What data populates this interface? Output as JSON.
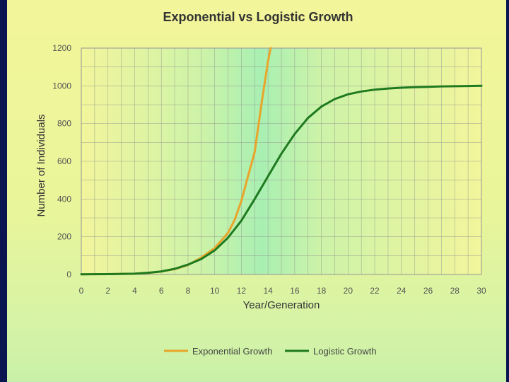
{
  "chart_data": {
    "type": "line",
    "title": "Exponential vs Logistic Growth",
    "xlabel": "Year/Generation",
    "ylabel": "Number of Individuals",
    "xlim": [
      0,
      30
    ],
    "ylim": [
      0,
      1200
    ],
    "x_ticks": [
      "0",
      "2",
      "4",
      "6",
      "8",
      "10",
      "12",
      "14",
      "16",
      "18",
      "20",
      "22",
      "24",
      "26",
      "28",
      "30"
    ],
    "y_ticks": [
      "0",
      "200",
      "400",
      "600",
      "800",
      "1000",
      "1200"
    ],
    "grid": true,
    "legend_position": "bottom",
    "series": [
      {
        "name": "Exponential Growth",
        "color": "#e8a52a",
        "x": [
          0,
          2,
          4,
          5,
          6,
          7,
          8,
          9,
          10,
          11,
          11.5,
          12,
          12.5,
          13,
          13.5,
          14,
          14.2
        ],
        "y": [
          1,
          2,
          4,
          8,
          16,
          28,
          50,
          90,
          140,
          220,
          290,
          390,
          520,
          650,
          900,
          1130,
          1200
        ]
      },
      {
        "name": "Logistic Growth",
        "color": "#1f7a1f",
        "x": [
          0,
          2,
          4,
          5,
          6,
          7,
          8,
          9,
          10,
          11,
          12,
          13,
          14,
          15,
          16,
          17,
          18,
          19,
          20,
          21,
          22,
          23,
          24,
          25,
          26,
          27,
          28,
          29,
          30
        ],
        "y": [
          1,
          2,
          4,
          9,
          16,
          30,
          52,
          82,
          128,
          195,
          285,
          400,
          520,
          640,
          745,
          830,
          890,
          930,
          955,
          970,
          980,
          986,
          990,
          993,
          995,
          997,
          998,
          999,
          1000
        ]
      }
    ]
  }
}
